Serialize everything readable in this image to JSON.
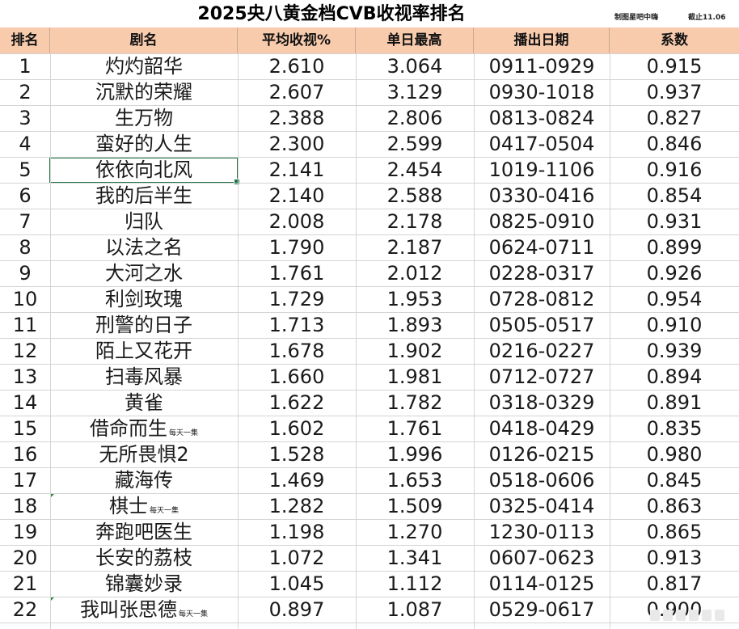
{
  "title": "2025央八黄金档CVB收视率排名",
  "credit": "制图星吧中嗨",
  "cutoff": "截止11.06",
  "headers": {
    "rank": "排名",
    "name": "剧名",
    "avg": "平均收视%",
    "peak": "单日最高",
    "dates": "播出日期",
    "coef": "系数"
  },
  "rows": [
    {
      "rank": "1",
      "name": "灼灼韶华",
      "note": "",
      "avg": "2.610",
      "peak": "3.064",
      "dates": "0911-0929",
      "coef": "0.915"
    },
    {
      "rank": "2",
      "name": "沉默的荣耀",
      "note": "",
      "avg": "2.607",
      "peak": "3.129",
      "dates": "0930-1018",
      "coef": "0.937"
    },
    {
      "rank": "3",
      "name": "生万物",
      "note": "",
      "avg": "2.388",
      "peak": "2.806",
      "dates": "0813-0824",
      "coef": "0.827"
    },
    {
      "rank": "4",
      "name": "蛮好的人生",
      "note": "",
      "avg": "2.300",
      "peak": "2.599",
      "dates": "0417-0504",
      "coef": "0.846"
    },
    {
      "rank": "5",
      "name": "依依向北风",
      "note": "",
      "avg": "2.141",
      "peak": "2.454",
      "dates": "1019-1106",
      "coef": "0.916"
    },
    {
      "rank": "6",
      "name": "我的后半生",
      "note": "",
      "avg": "2.140",
      "peak": "2.588",
      "dates": "0330-0416",
      "coef": "0.854"
    },
    {
      "rank": "7",
      "name": "归队",
      "note": "",
      "avg": "2.008",
      "peak": "2.178",
      "dates": "0825-0910",
      "coef": "0.931"
    },
    {
      "rank": "8",
      "name": "以法之名",
      "note": "",
      "avg": "1.790",
      "peak": "2.187",
      "dates": "0624-0711",
      "coef": "0.899"
    },
    {
      "rank": "9",
      "name": "大河之水",
      "note": "",
      "avg": "1.761",
      "peak": "2.012",
      "dates": "0228-0317",
      "coef": "0.926"
    },
    {
      "rank": "10",
      "name": "利剑玫瑰",
      "note": "",
      "avg": "1.729",
      "peak": "1.953",
      "dates": "0728-0812",
      "coef": "0.954"
    },
    {
      "rank": "11",
      "name": "刑警的日子",
      "note": "",
      "avg": "1.713",
      "peak": "1.893",
      "dates": "0505-0517",
      "coef": "0.910"
    },
    {
      "rank": "12",
      "name": "陌上又花开",
      "note": "",
      "avg": "1.678",
      "peak": "1.902",
      "dates": "0216-0227",
      "coef": "0.939"
    },
    {
      "rank": "13",
      "name": "扫毒风暴",
      "note": "",
      "avg": "1.660",
      "peak": "1.981",
      "dates": "0712-0727",
      "coef": "0.894"
    },
    {
      "rank": "14",
      "name": "黄雀",
      "note": "",
      "avg": "1.622",
      "peak": "1.782",
      "dates": "0318-0329",
      "coef": "0.891"
    },
    {
      "rank": "15",
      "name": "借命而生",
      "note": "每天一集",
      "avg": "1.602",
      "peak": "1.761",
      "dates": "0418-0429",
      "coef": "0.835"
    },
    {
      "rank": "16",
      "name": "无所畏惧2",
      "note": "",
      "avg": "1.528",
      "peak": "1.996",
      "dates": "0126-0215",
      "coef": "0.980"
    },
    {
      "rank": "17",
      "name": "藏海传",
      "note": "",
      "avg": "1.469",
      "peak": "1.653",
      "dates": "0518-0606",
      "coef": "0.845"
    },
    {
      "rank": "18",
      "name": "棋士",
      "note": "每天一集",
      "avg": "1.282",
      "peak": "1.509",
      "dates": "0325-0414",
      "coef": "0.863"
    },
    {
      "rank": "19",
      "name": "奔跑吧医生",
      "note": "",
      "avg": "1.198",
      "peak": "1.270",
      "dates": "1230-0113",
      "coef": "0.865"
    },
    {
      "rank": "20",
      "name": "长安的荔枝",
      "note": "",
      "avg": "1.072",
      "peak": "1.341",
      "dates": "0607-0623",
      "coef": "0.913"
    },
    {
      "rank": "21",
      "name": "锦囊妙录",
      "note": "",
      "avg": "1.045",
      "peak": "1.112",
      "dates": "0114-0125",
      "coef": "0.817"
    },
    {
      "rank": "22",
      "name": "我叫张思德",
      "note": "每天一集",
      "avg": "0.897",
      "peak": "1.087",
      "dates": "0529-0617",
      "coef": "0.900"
    }
  ],
  "colors": {
    "header_bg": "#f8cbad",
    "selection": "#217346"
  }
}
